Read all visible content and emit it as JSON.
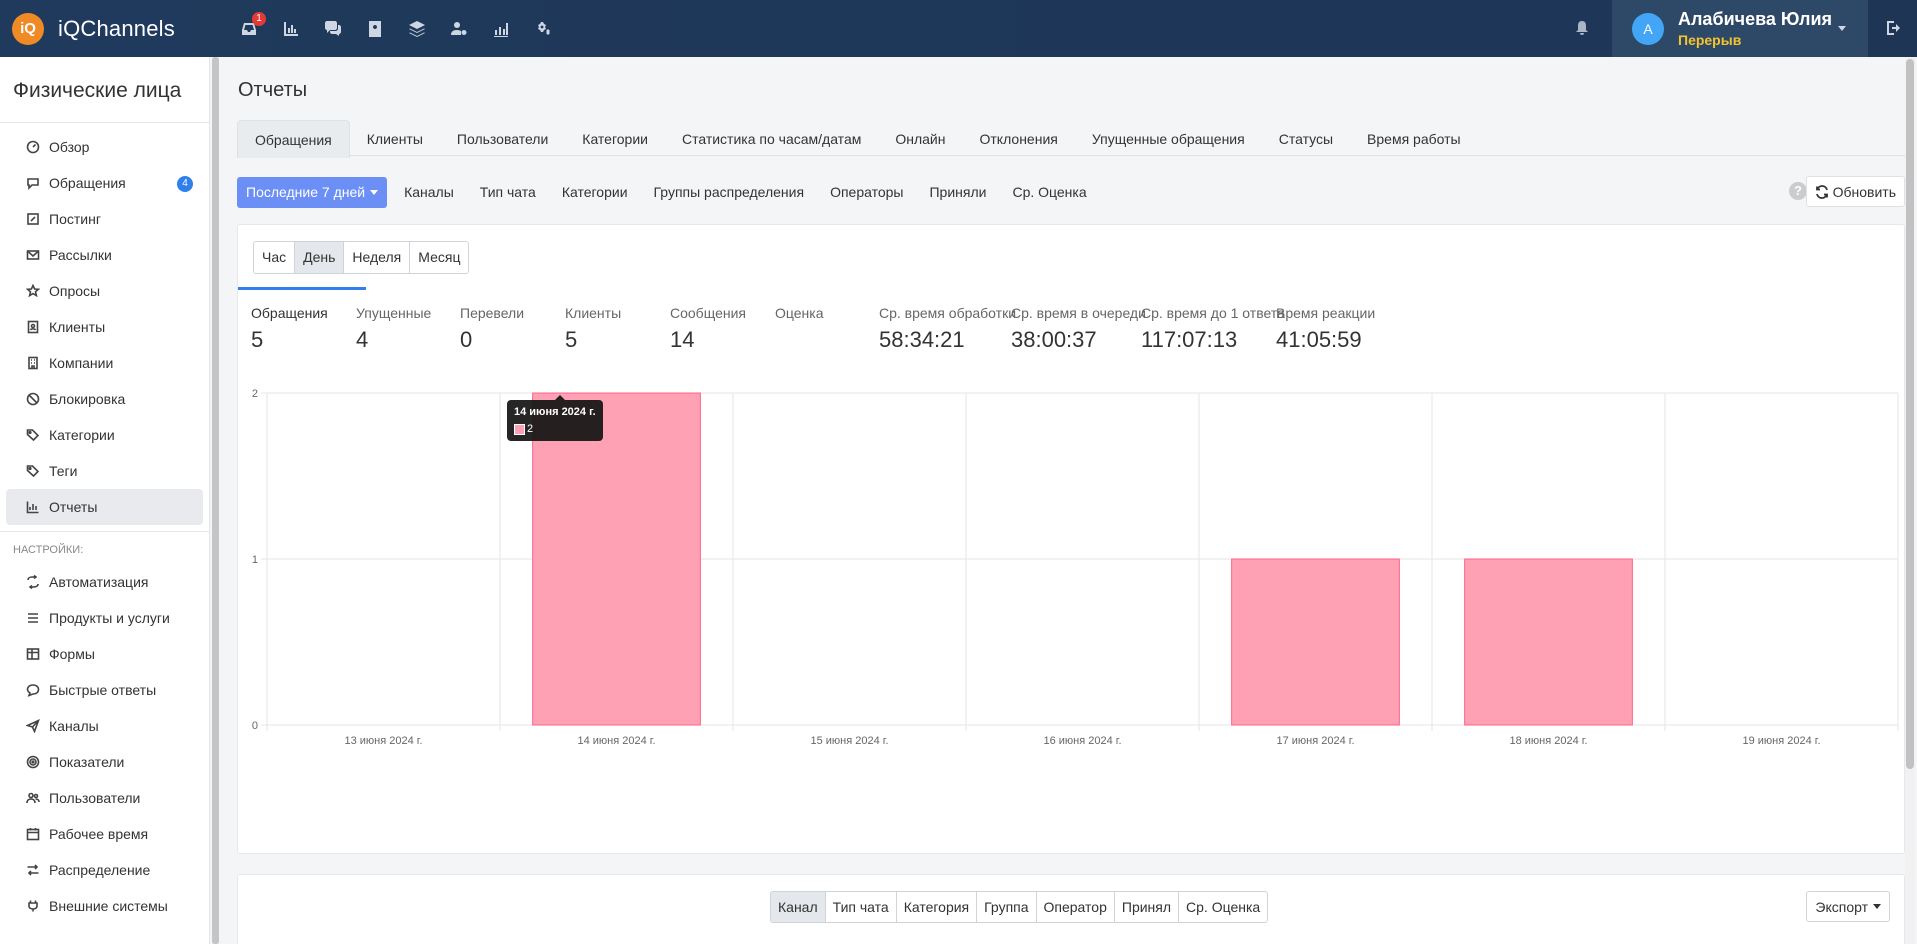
{
  "app": {
    "logo_badge": "iQ",
    "name": "iQChannels"
  },
  "topnav": {
    "icons": [
      "inbox-icon",
      "bar-chart-icon",
      "chats-icon",
      "contacts-book-icon",
      "layers-icon",
      "users-settings-icon",
      "analytics-icon",
      "settings-cogs-icon"
    ],
    "inbox_badge": "1"
  },
  "user": {
    "avatar_letter": "А",
    "name": "Алабичева Юлия",
    "status": "Перерыв",
    "status_color": "#f4c430"
  },
  "sidebar": {
    "title": "Физические лица",
    "items": [
      {
        "label": "Обзор",
        "icon": "dashboard-icon"
      },
      {
        "label": "Обращения",
        "icon": "chat-icon",
        "badge": "4"
      },
      {
        "label": "Постинг",
        "icon": "edit-icon"
      },
      {
        "label": "Рассылки",
        "icon": "mail-icon"
      },
      {
        "label": "Опросы",
        "icon": "star-icon"
      },
      {
        "label": "Клиенты",
        "icon": "contact-card-icon"
      },
      {
        "label": "Компании",
        "icon": "building-icon"
      },
      {
        "label": "Блокировка",
        "icon": "ban-icon"
      },
      {
        "label": "Категории",
        "icon": "tags-icon"
      },
      {
        "label": "Теги",
        "icon": "tag-icon"
      },
      {
        "label": "Отчеты",
        "icon": "bar-chart-icon",
        "active": true
      }
    ],
    "settings_heading": "НАСТРОЙКИ:",
    "settings_items": [
      {
        "label": "Автоматизация",
        "icon": "automation-icon"
      },
      {
        "label": "Продукты и услуги",
        "icon": "list-icon"
      },
      {
        "label": "Формы",
        "icon": "table-icon"
      },
      {
        "label": "Быстрые ответы",
        "icon": "quick-reply-icon"
      },
      {
        "label": "Каналы",
        "icon": "send-icon"
      },
      {
        "label": "Показатели",
        "icon": "target-icon"
      },
      {
        "label": "Пользователи",
        "icon": "users-icon"
      },
      {
        "label": "Рабочее время",
        "icon": "calendar-icon"
      },
      {
        "label": "Распределение",
        "icon": "shuffle-icon"
      },
      {
        "label": "Внешние системы",
        "icon": "plug-icon"
      }
    ]
  },
  "page": {
    "title": "Отчеты"
  },
  "tabs": [
    {
      "label": "Обращения",
      "active": true
    },
    {
      "label": "Клиенты"
    },
    {
      "label": "Пользователи"
    },
    {
      "label": "Категории"
    },
    {
      "label": "Статистика по часам/датам"
    },
    {
      "label": "Онлайн"
    },
    {
      "label": "Отклонения"
    },
    {
      "label": "Упущенные обращения"
    },
    {
      "label": "Статусы"
    },
    {
      "label": "Время работы"
    }
  ],
  "filters": {
    "range_label": "Последние 7 дней",
    "items": [
      "Каналы",
      "Тип чата",
      "Категории",
      "Группы распределения",
      "Операторы",
      "Приняли",
      "Ср. Оценка"
    ],
    "help": "?",
    "refresh_label": "Обновить"
  },
  "periods": [
    {
      "label": "Час"
    },
    {
      "label": "День",
      "active": true
    },
    {
      "label": "Неделя"
    },
    {
      "label": "Месяц"
    }
  ],
  "stats": [
    {
      "label": "Обращения",
      "value": "5"
    },
    {
      "label": "Упущенные",
      "value": "4"
    },
    {
      "label": "Перевели",
      "value": "0"
    },
    {
      "label": "Клиенты",
      "value": "5"
    },
    {
      "label": "Сообщения",
      "value": "14"
    },
    {
      "label": "Оценка",
      "value": ""
    },
    {
      "label": "Ср. время обработки",
      "value": "58:34:21"
    },
    {
      "label": "Ср. время в очереди",
      "value": "38:00:37"
    },
    {
      "label": "Ср. время до 1 ответа",
      "value": "117:07:13"
    },
    {
      "label": "Время реакции",
      "value": "41:05:59"
    }
  ],
  "chart_data": {
    "type": "bar",
    "categories": [
      "13 июня 2024 г.",
      "14 июня 2024 г.",
      "15 июня 2024 г.",
      "16 июня 2024 г.",
      "17 июня 2024 г.",
      "18 июня 2024 г.",
      "19 июня 2024 г."
    ],
    "values": [
      0,
      2,
      0,
      0,
      1,
      1,
      0
    ],
    "ylim": [
      0,
      2
    ],
    "yticks": [
      "0",
      "1",
      "2"
    ],
    "grid": true,
    "bar_fill": "#ffa1b5",
    "bar_stroke": "#ff6384",
    "tooltip": {
      "category": "14 июня 2024 г.",
      "value": "2"
    }
  },
  "grouping": {
    "tabs": [
      {
        "label": "Канал",
        "active": true
      },
      {
        "label": "Тип чата"
      },
      {
        "label": "Категория"
      },
      {
        "label": "Группа"
      },
      {
        "label": "Оператор"
      },
      {
        "label": "Принял"
      },
      {
        "label": "Ср. Оценка"
      }
    ],
    "export_label": "Экспорт"
  }
}
